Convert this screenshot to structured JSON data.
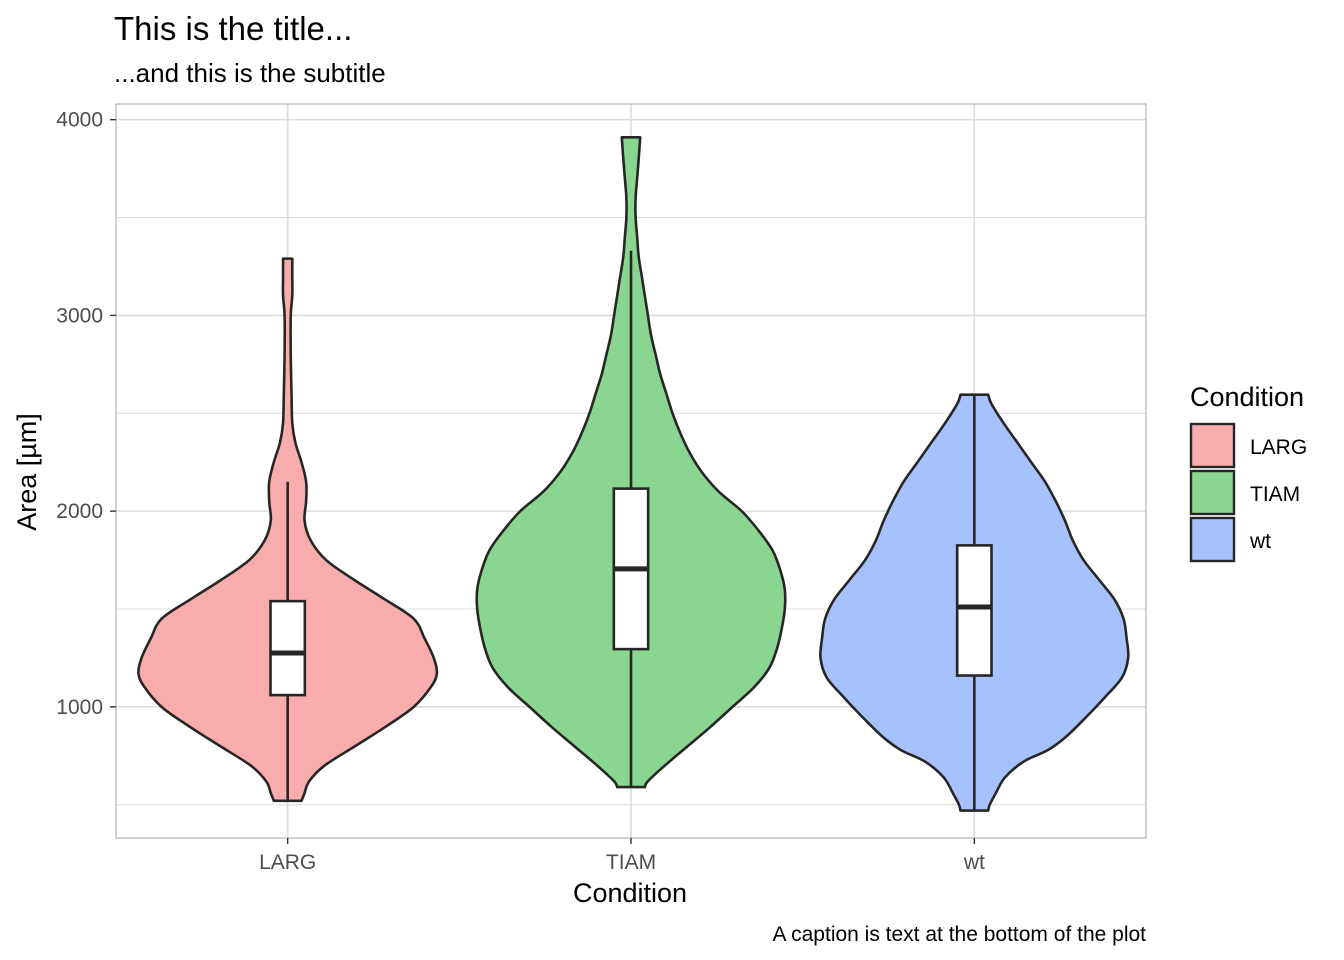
{
  "chart_data": {
    "type": "violin",
    "title": "This is the title...",
    "subtitle": "...and this is the subtitle",
    "caption": "A caption is text at the bottom of the plot",
    "xlabel": "Condition",
    "ylabel": "Area [µm]",
    "categories": [
      "LARG",
      "TIAM",
      "wt"
    ],
    "ylim": [
      330,
      4080
    ],
    "yticks": [
      1000,
      2000,
      3000,
      4000
    ],
    "ytick_labels": [
      "1000",
      "2000",
      "3000",
      "4000"
    ],
    "grid": true,
    "legend": {
      "title": "Condition",
      "position": "right",
      "entries": [
        "LARG",
        "TIAM",
        "wt"
      ]
    },
    "colors": {
      "LARG": "#F8ACAB",
      "TIAM": "#8AD690",
      "wt": "#A7C1FD",
      "outline": "#262626",
      "grid": "#dcdcdc",
      "panel_border": "#b3b3b3"
    },
    "series": [
      {
        "name": "LARG",
        "violin": {
          "y": [
            520,
            560,
            620,
            700,
            800,
            900,
            1000,
            1100,
            1170,
            1250,
            1350,
            1450,
            1550,
            1650,
            1750,
            1850,
            1950,
            2050,
            2150,
            2250,
            2350,
            2450,
            2600,
            2800,
            3000,
            3100,
            3200,
            3290
          ],
          "width": [
            0.09,
            0.11,
            0.14,
            0.24,
            0.44,
            0.64,
            0.82,
            0.93,
            0.97,
            0.95,
            0.89,
            0.82,
            0.63,
            0.43,
            0.25,
            0.15,
            0.11,
            0.12,
            0.12,
            0.09,
            0.05,
            0.03,
            0.025,
            0.02,
            0.02,
            0.03,
            0.03,
            0.03
          ]
        },
        "box": {
          "whisker_low": 520,
          "q1": 1060,
          "median": 1275,
          "q3": 1540,
          "whisker_high": 2150
        }
      },
      {
        "name": "TIAM",
        "violin": {
          "y": [
            590,
            620,
            700,
            800,
            900,
            1000,
            1100,
            1200,
            1300,
            1400,
            1500,
            1600,
            1700,
            1800,
            1900,
            2000,
            2100,
            2200,
            2300,
            2400,
            2500,
            2600,
            2700,
            2800,
            2900,
            3000,
            3100,
            3200,
            3300,
            3400,
            3500,
            3600,
            3700,
            3800,
            3910
          ],
          "width": [
            0.09,
            0.11,
            0.22,
            0.37,
            0.52,
            0.66,
            0.8,
            0.9,
            0.95,
            0.98,
            1.0,
            1.0,
            0.97,
            0.92,
            0.83,
            0.72,
            0.57,
            0.46,
            0.38,
            0.32,
            0.27,
            0.23,
            0.19,
            0.16,
            0.13,
            0.11,
            0.09,
            0.07,
            0.05,
            0.04,
            0.03,
            0.03,
            0.04,
            0.05,
            0.06
          ]
        },
        "box": {
          "whisker_low": 590,
          "q1": 1295,
          "median": 1705,
          "q3": 2115,
          "whisker_high": 3330
        }
      },
      {
        "name": "wt",
        "violin": {
          "y": [
            470,
            500,
            560,
            640,
            720,
            780,
            850,
            950,
            1050,
            1150,
            1250,
            1350,
            1450,
            1550,
            1650,
            1750,
            1850,
            1950,
            2050,
            2150,
            2250,
            2350,
            2450,
            2550,
            2595
          ],
          "width": [
            0.09,
            0.1,
            0.14,
            0.2,
            0.32,
            0.48,
            0.6,
            0.73,
            0.85,
            0.96,
            1.0,
            0.99,
            0.97,
            0.91,
            0.81,
            0.71,
            0.64,
            0.59,
            0.53,
            0.46,
            0.37,
            0.28,
            0.19,
            0.11,
            0.09
          ]
        },
        "box": {
          "whisker_low": 470,
          "q1": 1160,
          "median": 1510,
          "q3": 1825,
          "whisker_high": 2595
        }
      }
    ]
  }
}
